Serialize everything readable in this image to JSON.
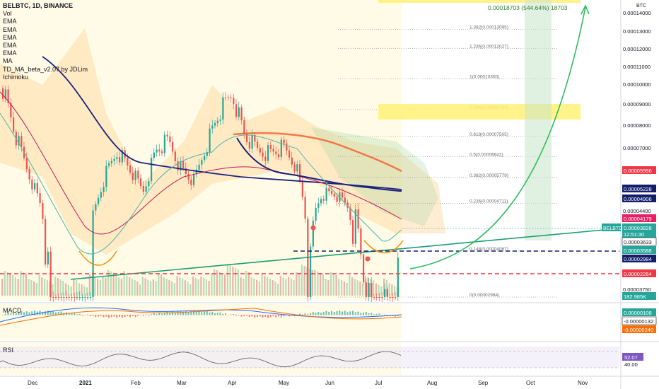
{
  "chart_data": {
    "type": "candlestick",
    "symbol": "BELBTC",
    "interval": "1D",
    "exchange": "BINANCE",
    "unit_label": "BTC",
    "title": "BELBTC, 1D, BINANCE",
    "indicators": [
      "Vol",
      "EMA",
      "EMA",
      "EMA",
      "EMA",
      "EMA",
      "MA",
      "TD_MA_beta_v2.07 by JDLim",
      "Ichimoku"
    ],
    "x_labels": [
      "Dec",
      "2021",
      "Feb",
      "Mar",
      "Apr",
      "May",
      "Jun",
      "Jul",
      "Aug",
      "Sep",
      "Oct",
      "Nov"
    ],
    "price_axis_ticks": [
      "0.00014000",
      "0.00013000",
      "0.00012000",
      "0.00011000",
      "0.00010000",
      "0.00009000",
      "0.00008000",
      "0.00007000",
      "0.00004400",
      "0.00003750"
    ],
    "price_axis_badges": [
      {
        "label": "0.00005996",
        "color": "#f23645"
      },
      {
        "label": "0.00005228",
        "color": "#131f6b"
      },
      {
        "label": "0.00004906",
        "color": "#131f6b"
      },
      {
        "label": "0.00004179",
        "color": "#e91e63"
      },
      {
        "label": "0.00003828",
        "color": "#26a69a"
      },
      {
        "label": "12:51:30",
        "color": "#26a69a"
      },
      {
        "label": "0.00003633",
        "color": "#ffffff"
      },
      {
        "label": "0.00003588",
        "color": "#26a69a"
      },
      {
        "label": "0.00002984",
        "color": "#131f6b"
      },
      {
        "label": "0.00002264",
        "color": "#f23645"
      },
      {
        "label": "182.985K",
        "color": "#26a69a"
      }
    ],
    "symbol_badge": "BELBTC",
    "fib_levels": [
      {
        "label": "1.382(0.00013095)",
        "value": 0.00013095
      },
      {
        "label": "1.236(0.00012027)",
        "value": 0.00012027
      },
      {
        "label": "1(0.00010300)",
        "value": 0.000103
      },
      {
        "label": "0.786(0.00008734)",
        "value": 8.734e-05
      },
      {
        "label": "0.618(0.00007505)",
        "value": 7.505e-05
      },
      {
        "label": "0.5(0.00006642)",
        "value": 6.642e-05
      },
      {
        "label": "0.382(0.00005779)",
        "value": 5.779e-05
      },
      {
        "label": "0.236(0.00004711)",
        "value": 4.711e-05
      },
      {
        "label": "0.148(0.00004067)",
        "value": 4.067e-05
      },
      {
        "label": "0(0.00002984)",
        "value": 2.984e-05
      }
    ],
    "target_label": "0.00018703 (544.64%) 18703",
    "series": [
      {
        "name": "close",
        "values": [
          9.8e-05,
          7.5e-05,
          6e-05,
          4.6e-05,
          3.2e-05,
          2.3e-05,
          2.5e-05,
          4.1e-05,
          5.8e-05,
          6.9e-05,
          6.1e-05,
          5.2e-05,
          6.9e-05,
          7.3e-05,
          6.1e-05,
          5.6e-05,
          7.2e-05,
          8.6e-05,
          9.5e-05,
          7.5e-05,
          6.9e-05,
          6.8e-05,
          7e-05,
          6.3e-05,
          3.7e-05,
          5.1e-05,
          5.1e-05,
          4.6e-05,
          4.1e-05,
          3.4e-05,
          3.6e-05,
          3.8e-05
        ]
      },
      {
        "name": "volume_k",
        "values": [
          40,
          38,
          30,
          28,
          25,
          22,
          18,
          30,
          42,
          38,
          30,
          26,
          33,
          30,
          28,
          25,
          35,
          48,
          55,
          40,
          32,
          30,
          28,
          35,
          60,
          42,
          35,
          30,
          28,
          26,
          22,
          18
        ]
      }
    ],
    "macd_labels": [
      "0.00000108",
      "-0.00000132",
      "-0.00000240"
    ],
    "rsi_labels": [
      "52.07",
      "40.00"
    ],
    "pane_labels": [
      "MACD",
      "RSI"
    ]
  }
}
